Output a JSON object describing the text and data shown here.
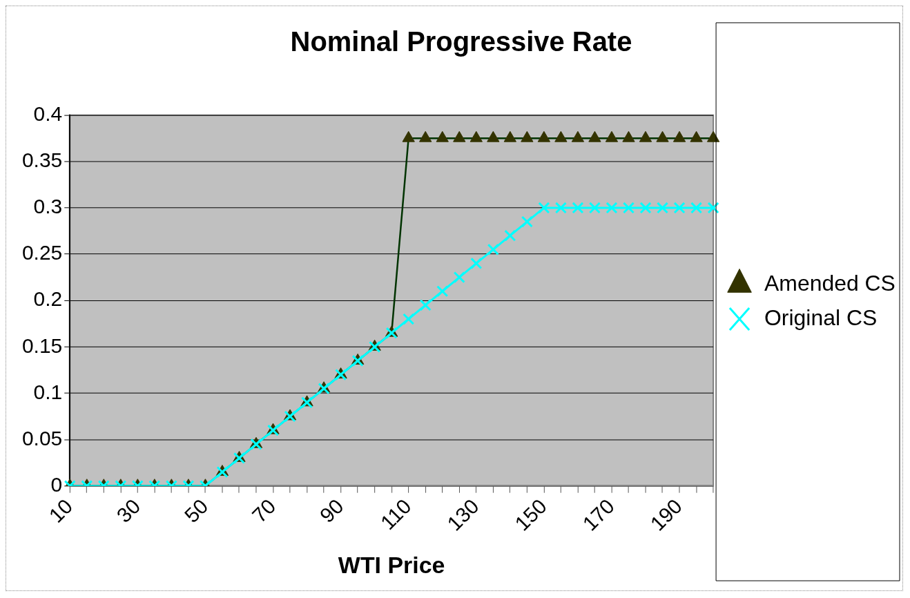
{
  "chart_data": {
    "type": "line",
    "title": "Nominal Progressive Rate",
    "xlabel": "WTI Price",
    "categories": [
      "10",
      null,
      null,
      null,
      "30",
      null,
      null,
      null,
      "50",
      null,
      null,
      null,
      "70",
      null,
      null,
      null,
      "90",
      null,
      null,
      null,
      "110",
      null,
      null,
      null,
      "130",
      null,
      null,
      null,
      "150",
      null,
      null,
      null,
      "170",
      null,
      null,
      null,
      "190",
      null,
      null
    ],
    "series": [
      {
        "name": "Amended CS",
        "color": "#333300",
        "marker": "triangle",
        "values": [
          0,
          0,
          0,
          0,
          0,
          0,
          0,
          0,
          0,
          0.015,
          0.03,
          0.045,
          0.06,
          0.075,
          0.09,
          0.105,
          0.12,
          0.135,
          0.15,
          0.165,
          0.375,
          0.375,
          0.375,
          0.375,
          0.375,
          0.375,
          0.375,
          0.375,
          0.375,
          0.375,
          0.375,
          0.375,
          0.375,
          0.375,
          0.375,
          0.375,
          0.375,
          0.375,
          0.375
        ]
      },
      {
        "name": "Original CS",
        "color": "#00ffff",
        "marker": "cross",
        "values": [
          0,
          0,
          0,
          0,
          0,
          0,
          0,
          0,
          0,
          0.015,
          0.03,
          0.045,
          0.06,
          0.075,
          0.09,
          0.105,
          0.12,
          0.135,
          0.15,
          0.165,
          0.18,
          0.195,
          0.21,
          0.225,
          0.24,
          0.255,
          0.27,
          0.285,
          0.3,
          0.3,
          0.3,
          0.3,
          0.3,
          0.3,
          0.3,
          0.3,
          0.3,
          0.3,
          0.3
        ]
      }
    ],
    "ylim": [
      0,
      0.4
    ],
    "yticks": [
      0,
      0.05,
      0.1,
      0.15,
      0.2,
      0.25,
      0.3,
      0.35,
      0.4
    ],
    "grid": "y",
    "legend": "right"
  }
}
